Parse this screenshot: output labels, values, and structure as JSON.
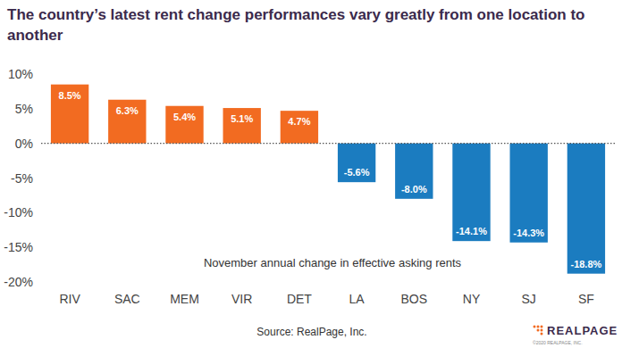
{
  "chart_data": {
    "type": "bar",
    "title": "The country’s latest rent change performances vary greatly from one location to another",
    "annotation": "November annual change in effective asking rents",
    "source": "Source: RealPage, Inc.",
    "logo": "REALPAGE",
    "logo_note": "©2020 REALPAGE, INC.",
    "categories": [
      "RIV",
      "SAC",
      "MEM",
      "VIR",
      "DET",
      "LA",
      "BOS",
      "NY",
      "SJ",
      "SF"
    ],
    "values": [
      8.5,
      6.3,
      5.4,
      5.1,
      4.7,
      -5.6,
      -8.0,
      -14.1,
      -14.3,
      -18.8
    ],
    "value_labels": [
      "8.5%",
      "6.3%",
      "5.4%",
      "5.1%",
      "4.7%",
      "-5.6%",
      "-8.0%",
      "-14.1%",
      "-14.3%",
      "-18.8%"
    ],
    "colors": [
      "#f26b21",
      "#f26b21",
      "#f26b21",
      "#f26b21",
      "#f26b21",
      "#1b7cc0",
      "#1b7cc0",
      "#1b7cc0",
      "#1b7cc0",
      "#1b7cc0"
    ],
    "ylim": [
      -20,
      10
    ],
    "yticks": [
      {
        "value": -20,
        "label": "-20%"
      },
      {
        "value": -15,
        "label": "-15%"
      },
      {
        "value": -10,
        "label": "-10%"
      },
      {
        "value": -5,
        "label": "-5%"
      },
      {
        "value": 0,
        "label": "0%"
      },
      {
        "value": 5,
        "label": "5%"
      },
      {
        "value": 10,
        "label": "10%"
      }
    ],
    "grid": false,
    "data_labels": true
  }
}
